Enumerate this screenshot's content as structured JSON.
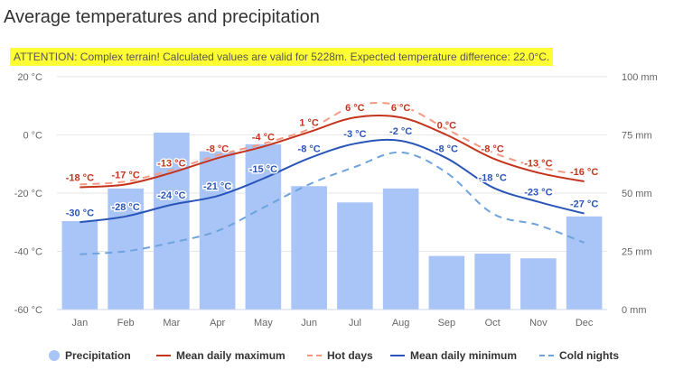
{
  "title": "Average temperatures and precipitation",
  "attention": "ATTENTION: Complex terrain! Calculated values are valid for 5228m. Expected temperature difference: 22.0°C.",
  "colors": {
    "precipitation": "#a9c4f7",
    "mean_max": "#c4341c",
    "hot_days": "#f49a84",
    "mean_min": "#2a55b8",
    "cold_nights": "#6ea3dd"
  },
  "chart_data": {
    "type": "bar",
    "categories": [
      "Jan",
      "Feb",
      "Mar",
      "Apr",
      "May",
      "Jun",
      "Jul",
      "Aug",
      "Sep",
      "Oct",
      "Nov",
      "Dec"
    ],
    "y_left": {
      "unit": "°C",
      "ylim": [
        -60,
        20
      ],
      "ticks": [
        -60,
        -40,
        -20,
        0,
        20
      ],
      "tick_labels": [
        "-60 °C",
        "-40 °C",
        "-20 °C",
        "0 °C",
        "20 °C"
      ]
    },
    "y_right": {
      "unit": "mm",
      "ylim": [
        0,
        100
      ],
      "ticks": [
        0,
        25,
        50,
        75,
        100
      ],
      "tick_labels": [
        "0 mm",
        "25 mm",
        "50 mm",
        "75 mm",
        "100 mm"
      ]
    },
    "series": [
      {
        "name": "Precipitation",
        "kind": "bar",
        "axis": "right",
        "values": [
          38,
          52,
          76,
          68,
          71,
          53,
          46,
          52,
          23,
          24,
          22,
          40
        ]
      },
      {
        "name": "Mean daily maximum",
        "kind": "line",
        "axis": "left",
        "values": [
          -18,
          -17,
          -13,
          -8,
          -4,
          1,
          6,
          6,
          0,
          -8,
          -13,
          -16
        ],
        "labels": [
          "-18 °C",
          "-17 °C",
          "-13 °C",
          "-8 °C",
          "-4 °C",
          "1 °C",
          "6 °C",
          "6 °C",
          "0 °C",
          "-8 °C",
          "-13 °C",
          "-16 °C"
        ]
      },
      {
        "name": "Hot days",
        "kind": "dashed",
        "axis": "left",
        "values": [
          -17,
          -16,
          -12,
          -7,
          -3,
          2,
          10,
          10,
          2,
          -6,
          -11,
          -14
        ]
      },
      {
        "name": "Mean daily minimum",
        "kind": "line",
        "axis": "left",
        "values": [
          -30,
          -28,
          -24,
          -21,
          -15,
          -8,
          -3,
          -2,
          -8,
          -18,
          -23,
          -27
        ],
        "labels": [
          "-30 °C",
          "-28 °C",
          "-24 °C",
          "-21 °C",
          "-15 °C",
          "-8 °C",
          "-3 °C",
          "-2 °C",
          "-8 °C",
          "-18 °C",
          "-23 °C",
          "-27 °C"
        ]
      },
      {
        "name": "Cold nights",
        "kind": "dashed",
        "axis": "left",
        "values": [
          -41,
          -40,
          -37,
          -33,
          -25,
          -17,
          -11,
          -6,
          -13,
          -27,
          -31,
          -37
        ]
      }
    ]
  },
  "legend": [
    {
      "label": "Precipitation",
      "style": "dot"
    },
    {
      "label": "Mean daily maximum",
      "style": "line"
    },
    {
      "label": "Hot days",
      "style": "dash"
    },
    {
      "label": "Mean daily minimum",
      "style": "line"
    },
    {
      "label": "Cold nights",
      "style": "dash"
    }
  ]
}
